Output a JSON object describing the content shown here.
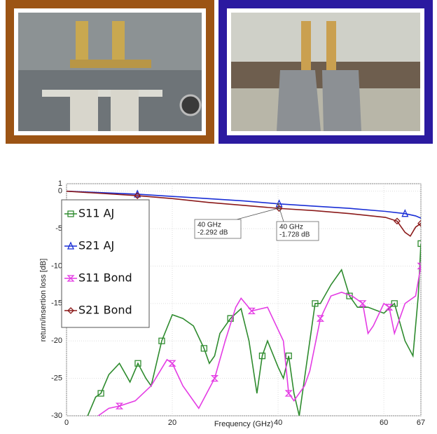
{
  "chart_data": {
    "type": "line",
    "xlabel": "Frequency (GHz)",
    "ylabel": "return/insertion loss [dB]",
    "xlim": [
      0,
      67
    ],
    "xticks": [
      0,
      20,
      40,
      60,
      67
    ],
    "ylim": [
      -30,
      1
    ],
    "yticks": [
      -30,
      -25,
      -20,
      -15,
      -10,
      -5,
      0,
      1
    ],
    "grid": true,
    "legend": "left",
    "series": [
      {
        "name": "S11 AJ",
        "color": "#2e8b2e",
        "marker": "square",
        "x": [
          4,
          5.5,
          6.5,
          8,
          10,
          12,
          13.5,
          15,
          16,
          17,
          18,
          20,
          22,
          24,
          26,
          27,
          28,
          29,
          31,
          33,
          34.5,
          36,
          37,
          38,
          40,
          41,
          42,
          43,
          44,
          45,
          47,
          48,
          50,
          52,
          53.5,
          55,
          57,
          60,
          62,
          64,
          65.5,
          66.5,
          67
        ],
        "values": [
          -30,
          -27.5,
          -27,
          -24.5,
          -23,
          -25.5,
          -23,
          -25,
          -26,
          -23,
          -20,
          -16.5,
          -17,
          -18,
          -21,
          -23,
          -22,
          -19,
          -17,
          -15.7,
          -20,
          -27,
          -22,
          -20,
          -23.5,
          -25,
          -22,
          -27,
          -30,
          -25,
          -15,
          -15,
          -12.5,
          -10.5,
          -14,
          -15.5,
          -15.5,
          -16.3,
          -15,
          -20,
          -22,
          -14,
          -7
        ]
      },
      {
        "name": "S21 AJ",
        "color": "#1a2fd6",
        "marker": "triangle",
        "x": [
          0,
          6.7,
          13.4,
          20.1,
          26.8,
          33.5,
          40.2,
          46.9,
          53.6,
          60.3,
          64,
          66,
          67
        ],
        "values": [
          0,
          -0.2,
          -0.4,
          -0.7,
          -1.0,
          -1.3,
          -1.7,
          -2.0,
          -2.3,
          -2.7,
          -3.0,
          -3.3,
          -3.6
        ]
      },
      {
        "name": "S11 Bond",
        "color": "#e43ce4",
        "marker": "bowtie",
        "x": [
          6,
          8,
          10,
          13,
          16,
          19,
          20,
          22,
          25,
          26.5,
          28,
          30,
          32,
          33,
          35,
          38,
          40,
          41,
          42,
          43,
          45,
          46,
          48,
          50,
          52,
          54,
          56,
          57,
          58,
          60,
          61,
          62,
          64,
          66,
          67
        ],
        "values": [
          -30,
          -29,
          -28.7,
          -28,
          -26,
          -22.5,
          -23,
          -26,
          -29,
          -27,
          -25,
          -20,
          -15.5,
          -14.3,
          -16,
          -15.5,
          -18.5,
          -20,
          -27,
          -28,
          -26,
          -24,
          -17,
          -14,
          -13.5,
          -14,
          -15,
          -19,
          -18,
          -15,
          -15.5,
          -19,
          -15,
          -14,
          -10
        ]
      },
      {
        "name": "S21 Bond",
        "color": "#8b1a1a",
        "marker": "diamond",
        "x": [
          0,
          6.7,
          13.4,
          20.1,
          26.8,
          33.5,
          40.2,
          46.9,
          53.6,
          60.3,
          62.5,
          64,
          65,
          66,
          67
        ],
        "values": [
          0,
          -0.3,
          -0.6,
          -1.0,
          -1.5,
          -1.9,
          -2.3,
          -2.6,
          -3.0,
          -3.5,
          -4.0,
          -5.5,
          -6.0,
          -4.8,
          -4.3
        ]
      }
    ],
    "annotations": [
      {
        "x": 40,
        "y": -2.292,
        "text": [
          "40 GHz",
          "-2.292 dB"
        ]
      },
      {
        "x": 40,
        "y": -1.728,
        "text": [
          "40 GHz",
          "-1.728 dB"
        ]
      }
    ]
  }
}
